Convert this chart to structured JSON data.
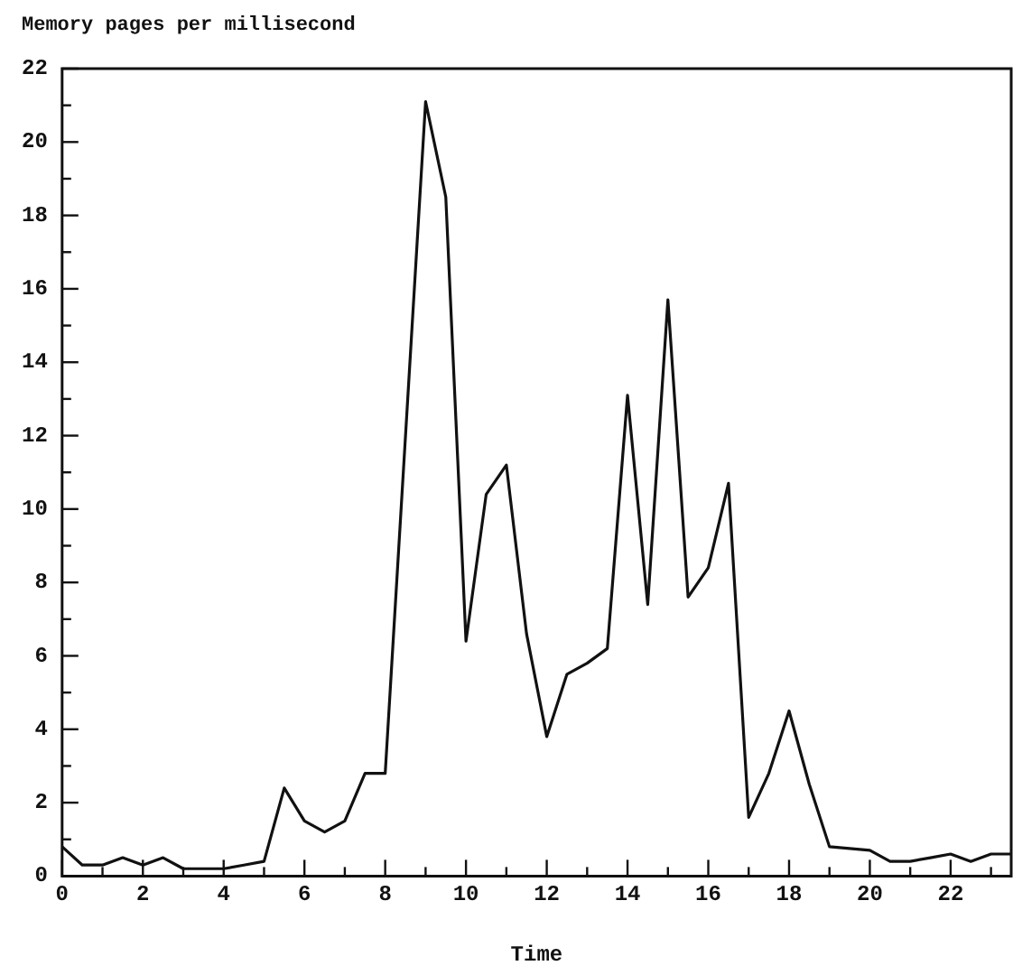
{
  "chart_data": {
    "type": "line",
    "ylabel": "Memory pages per millisecond",
    "xlabel": "Time",
    "x": [
      0,
      0.5,
      1,
      1.5,
      2,
      2.5,
      3,
      3.5,
      4,
      4.5,
      5,
      5.5,
      6,
      6.5,
      7,
      7.5,
      8,
      9,
      9.5,
      10,
      10.5,
      11,
      11.5,
      12,
      12.5,
      13,
      13.5,
      14,
      14.5,
      15,
      15.5,
      16,
      16.5,
      17,
      17.5,
      18,
      18.5,
      19,
      19.5,
      20,
      20.5,
      21,
      21.5,
      22,
      22.5,
      23,
      23.5
    ],
    "series": [
      {
        "color": "#111111",
        "values": [
          0.8,
          0.3,
          0.3,
          0.5,
          0.3,
          0.5,
          0.2,
          0.2,
          0.2,
          0.3,
          0.4,
          2.4,
          1.5,
          1.2,
          1.5,
          2.8,
          2.8,
          21.1,
          18.5,
          6.4,
          10.4,
          11.2,
          6.6,
          3.8,
          5.5,
          5.8,
          6.2,
          13.1,
          7.4,
          15.7,
          7.6,
          8.4,
          10.7,
          1.6,
          2.8,
          4.5,
          2.5,
          0.8,
          0.75,
          0.7,
          0.4,
          0.4,
          0.5,
          0.6,
          0.4,
          0.6,
          0.6
        ]
      }
    ],
    "xlim": [
      0,
      23.5
    ],
    "ylim": [
      0,
      22
    ],
    "xticks": [
      0,
      {
        "value": 1,
        "label": null
      },
      2,
      {
        "value": 3,
        "label": null
      },
      4,
      {
        "value": 5,
        "label": null
      },
      6,
      {
        "value": 7,
        "label": null
      },
      8,
      {
        "value": 9,
        "label": null
      },
      10,
      {
        "value": 11,
        "label": null
      },
      12,
      {
        "value": 13,
        "label": null
      },
      14,
      {
        "value": 15,
        "label": null
      },
      16,
      {
        "value": 17,
        "label": null
      },
      18,
      {
        "value": 19,
        "label": null
      },
      20,
      {
        "value": 21,
        "label": null
      },
      22,
      {
        "value": 23,
        "label": null
      }
    ],
    "yticks": [
      0,
      {
        "value": 1,
        "label": null
      },
      2,
      {
        "value": 3,
        "label": null
      },
      4,
      {
        "value": 5,
        "label": null
      },
      6,
      {
        "value": 7,
        "label": null
      },
      8,
      {
        "value": 9,
        "label": null
      },
      10,
      {
        "value": 11,
        "label": null
      },
      12,
      {
        "value": 13,
        "label": null
      },
      14,
      {
        "value": 15,
        "label": null
      },
      16,
      {
        "value": 17,
        "label": null
      },
      18,
      {
        "value": 19,
        "label": null
      },
      20,
      {
        "value": 21,
        "label": null
      },
      22
    ],
    "grid": false,
    "legend": false,
    "marker": "none",
    "line_style": "solid"
  }
}
